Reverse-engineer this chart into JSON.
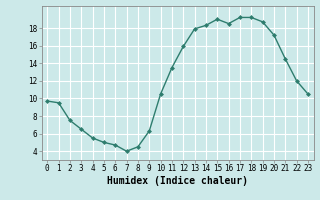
{
  "x": [
    0,
    1,
    2,
    3,
    4,
    5,
    6,
    7,
    8,
    9,
    10,
    11,
    12,
    13,
    14,
    15,
    16,
    17,
    18,
    19,
    20,
    21,
    22,
    23
  ],
  "y": [
    9.7,
    9.5,
    7.5,
    6.5,
    5.5,
    5.0,
    4.7,
    4.0,
    4.5,
    6.3,
    10.5,
    13.5,
    15.9,
    17.9,
    18.3,
    19.0,
    18.5,
    19.2,
    19.2,
    18.7,
    17.2,
    14.5,
    12.0,
    10.5
  ],
  "line_color": "#2e7d6e",
  "marker": "D",
  "markersize": 2.0,
  "linewidth": 1.0,
  "xlabel": "Humidex (Indice chaleur)",
  "xlabel_fontsize": 7,
  "ylim": [
    3,
    20.5
  ],
  "xlim": [
    -0.5,
    23.5
  ],
  "yticks": [
    4,
    6,
    8,
    10,
    12,
    14,
    16,
    18
  ],
  "xticks": [
    0,
    1,
    2,
    3,
    4,
    5,
    6,
    7,
    8,
    9,
    10,
    11,
    12,
    13,
    14,
    15,
    16,
    17,
    18,
    19,
    20,
    21,
    22,
    23
  ],
  "bg_color": "#cce9e9",
  "grid_color": "#ffffff",
  "tick_fontsize": 5.5
}
